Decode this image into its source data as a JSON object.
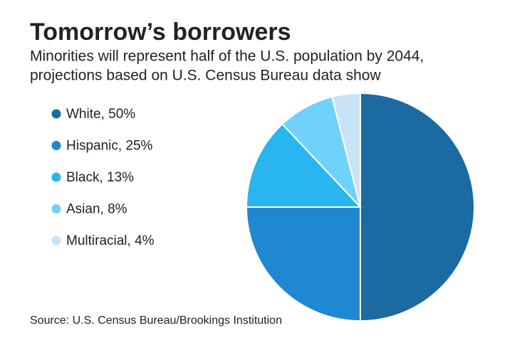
{
  "chart_data": {
    "type": "pie",
    "title": "Tomorrow’s borrowers",
    "subtitle": [
      "Minorities will represent half of the U.S. population by 2044,",
      "projections based on U.S. Census Bureau data show"
    ],
    "categories": [
      "White, 50%",
      "Hispanic, 25%",
      "Black, 13%",
      "Asian, 8%",
      "Multiracial, 4%"
    ],
    "values": [
      50,
      25,
      13,
      8,
      4
    ],
    "colors": [
      "#1b6aa2",
      "#1f88d3",
      "#29b5ef",
      "#6fd2fb",
      "#c8e2f8"
    ],
    "source": "Source: U.S. Census Bureau/Brookings Institution"
  }
}
